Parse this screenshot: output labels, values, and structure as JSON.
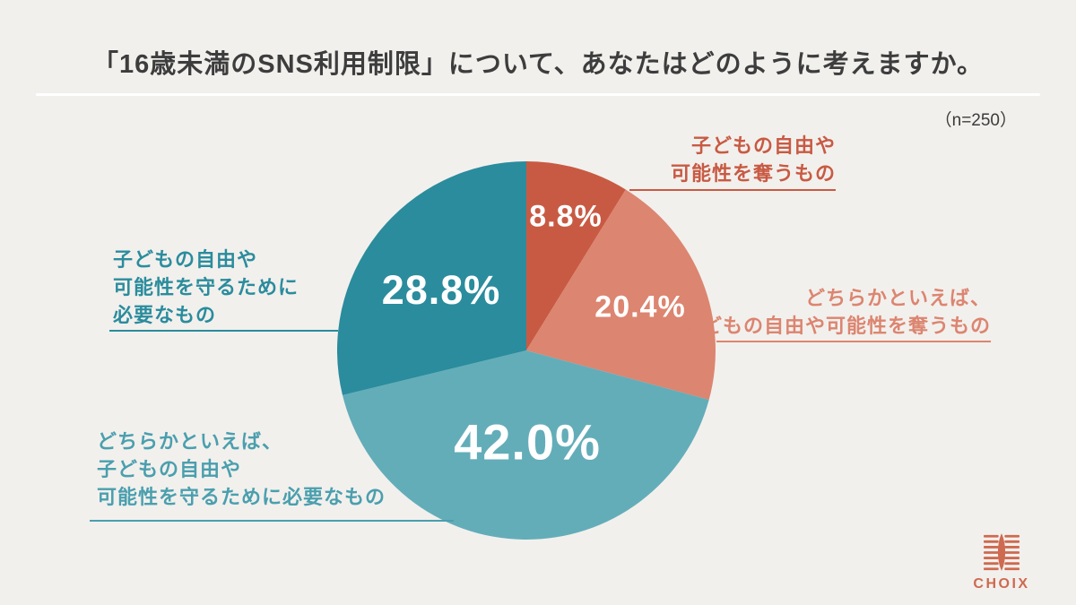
{
  "header": {
    "title": "「16歳未満のSNS利用制限」について、あなたはどのように考えますか。",
    "sample_size": "（n=250）"
  },
  "chart_data": {
    "type": "pie",
    "title": "「16歳未満のSNS利用制限」について、あなたはどのように考えますか。",
    "sample_size_n": 250,
    "start_angle": "top",
    "direction": "clockwise",
    "legend_position": "callout-labels",
    "slices": [
      {
        "name": "子どもの自由や可能性を奪うもの",
        "label_lines": [
          "子どもの自由や",
          "可能性を奪うもの"
        ],
        "value": 8.8,
        "pct_label": "8.8%",
        "color": "#C85A43",
        "label_color": "#C85A43"
      },
      {
        "name": "どちらかといえば、子どもの自由や可能性を奪うもの",
        "label_lines": [
          "どちらかといえば、",
          "子どもの自由や可能性を奪うもの"
        ],
        "value": 20.4,
        "pct_label": "20.4%",
        "color": "#DC8570",
        "label_color": "#DC8570"
      },
      {
        "name": "どちらかといえば、子どもの自由や可能性を守るために必要なもの",
        "label_lines": [
          "どちらかといえば、",
          "子どもの自由や",
          "可能性を守るために必要なもの"
        ],
        "value": 42.0,
        "pct_label": "42.0%",
        "color": "#63ADB9",
        "label_color": "#4A9FAE"
      },
      {
        "name": "子どもの自由や可能性を守るために必要なもの",
        "label_lines": [
          "子どもの自由や",
          "可能性を守るために",
          "必要なもの"
        ],
        "value": 28.8,
        "pct_label": "28.8%",
        "color": "#2A8C9D",
        "label_color": "#2A8C9D"
      }
    ],
    "background_color": "#F2F0ED",
    "value_text_color": "#FFFFFF"
  },
  "logo": {
    "text": "CHOIX",
    "color": "#CE6A50"
  }
}
